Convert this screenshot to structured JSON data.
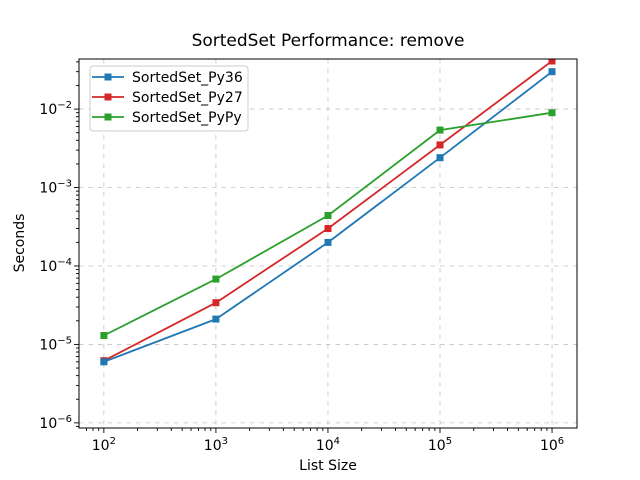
{
  "figure": {
    "background": "#ffffff",
    "spine_color": "#000000",
    "text_color": "#000000"
  },
  "chart_data": {
    "type": "line",
    "title": "SortedSet Performance: remove",
    "xlabel": "List Size",
    "ylabel": "Seconds",
    "x_scale": "log",
    "y_scale": "log",
    "grid": true,
    "grid_color": "#c3c3c3",
    "legend_position": "upper-left",
    "x": [
      100,
      1000,
      10000,
      100000,
      1000000
    ],
    "series": [
      {
        "name": "SortedSet_Py36",
        "color": "#1f77b4",
        "marker": "square",
        "values": [
          6e-06,
          2.1e-05,
          0.0002,
          0.0024,
          0.03
        ]
      },
      {
        "name": "SortedSet_Py27",
        "color": "#d62728",
        "marker": "square",
        "values": [
          6.2e-06,
          3.4e-05,
          0.0003,
          0.0035,
          0.041
        ]
      },
      {
        "name": "SortedSet_PyPy",
        "color": "#2ca02c",
        "marker": "square",
        "values": [
          1.3e-05,
          6.8e-05,
          0.00044,
          0.0054,
          0.009
        ]
      }
    ],
    "z_order": [
      1,
      0,
      2
    ],
    "x_tick_exponents": [
      2,
      3,
      4,
      5,
      6
    ],
    "y_tick_exponents": [
      -2,
      -3,
      -4,
      -5,
      -6
    ],
    "xlim": [
      60,
      1670000
    ],
    "ylim": [
      8.6e-07,
      0.0435
    ]
  }
}
